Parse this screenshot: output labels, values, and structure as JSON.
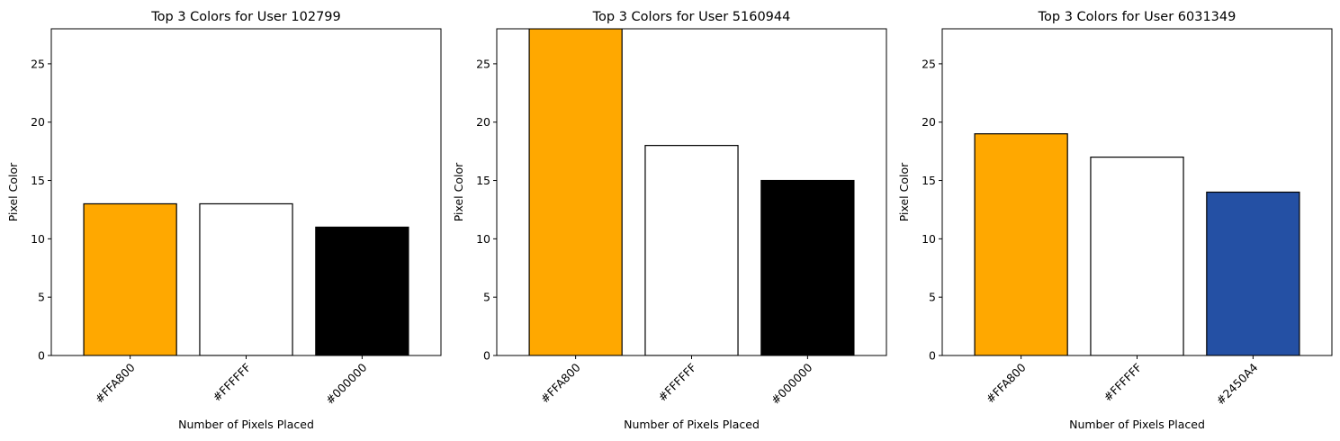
{
  "chart_data": [
    {
      "type": "bar",
      "title": "Top 3 Colors for User 102799",
      "xlabel": "Number of Pixels Placed",
      "ylabel": "Pixel Color",
      "categories": [
        "#FFA800",
        "#FFFFFF",
        "#000000"
      ],
      "values": [
        13,
        13,
        11
      ],
      "bar_colors": [
        "#FFA800",
        "#FFFFFF",
        "#000000"
      ],
      "ylim": [
        0,
        28
      ],
      "yticks": [
        0,
        5,
        10,
        15,
        20,
        25
      ],
      "grid": false
    },
    {
      "type": "bar",
      "title": "Top 3 Colors for User 5160944",
      "xlabel": "Number of Pixels Placed",
      "ylabel": "Pixel Color",
      "categories": [
        "#FFA800",
        "#FFFFFF",
        "#000000"
      ],
      "values": [
        28,
        18,
        15
      ],
      "bar_colors": [
        "#FFA800",
        "#FFFFFF",
        "#000000"
      ],
      "ylim": [
        0,
        28
      ],
      "yticks": [
        0,
        5,
        10,
        15,
        20,
        25
      ],
      "grid": false
    },
    {
      "type": "bar",
      "title": "Top 3 Colors for User 6031349",
      "xlabel": "Number of Pixels Placed",
      "ylabel": "Pixel Color",
      "categories": [
        "#FFA800",
        "#FFFFFF",
        "#2450A4"
      ],
      "values": [
        19,
        17,
        14
      ],
      "bar_colors": [
        "#FFA800",
        "#FFFFFF",
        "#2450A4"
      ],
      "ylim": [
        0,
        28
      ],
      "yticks": [
        0,
        5,
        10,
        15,
        20,
        25
      ],
      "grid": false
    }
  ]
}
